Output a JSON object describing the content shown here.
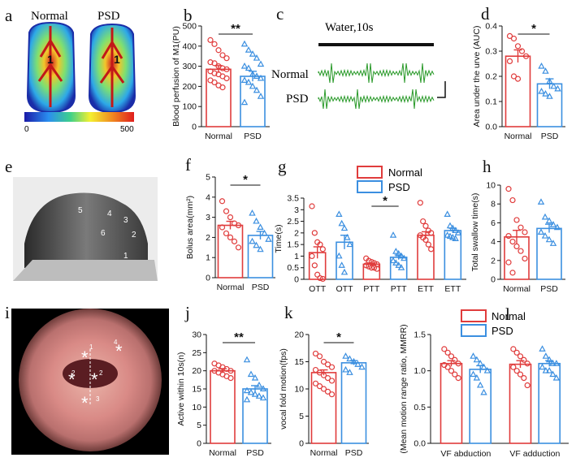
{
  "colors": {
    "normal": "#e03c3c",
    "psd": "#3b8fe0"
  },
  "legend": {
    "normal": "Normal",
    "psd": "PSD"
  },
  "panel_letters": [
    "a",
    "b",
    "c",
    "d",
    "e",
    "f",
    "g",
    "h",
    "i",
    "j",
    "k",
    "l"
  ],
  "panel_a": {
    "label_normal": "Normal",
    "label_psd": "PSD",
    "marker": "1",
    "scale_min": "0",
    "scale_max": "500"
  },
  "panel_c": {
    "stimulus": "Water,10s",
    "label_normal": "Normal",
    "label_psd": "PSD"
  },
  "panel_e": {
    "markers": [
      "5",
      "4",
      "3",
      "6",
      "2",
      "1"
    ]
  },
  "panel_i": {
    "markers": [
      "1",
      "2",
      "2",
      "3",
      "4"
    ]
  },
  "chart_data": [
    {
      "panel": "b",
      "type": "bar",
      "categories": [
        "Normal",
        "PSD"
      ],
      "ylabel": "Blood perfusion of M1(PU)",
      "ylim": [
        0,
        500
      ],
      "yticks": [
        0,
        100,
        200,
        300,
        400,
        500
      ],
      "means": [
        285,
        250
      ],
      "sem": [
        18,
        25
      ],
      "sig": "**",
      "points": [
        [
          430,
          410,
          380,
          355,
          340,
          320,
          315,
          300,
          290,
          285,
          275,
          265,
          260,
          250,
          240,
          230,
          220,
          205,
          195
        ],
        [
          410,
          380,
          360,
          340,
          310,
          300,
          290,
          260,
          250,
          240,
          230,
          220,
          200,
          180,
          150,
          120
        ]
      ]
    },
    {
      "panel": "d",
      "type": "bar",
      "categories": [
        "Normal",
        "PSD"
      ],
      "ylabel": "Area under the urve (AUC)",
      "ylim": [
        0,
        0.4
      ],
      "yticks": [
        0.0,
        0.1,
        0.2,
        0.3,
        0.4
      ],
      "means": [
        0.28,
        0.17
      ],
      "sem": [
        0.025,
        0.02
      ],
      "sig": "*",
      "points": [
        [
          0.36,
          0.35,
          0.32,
          0.3,
          0.28,
          0.26,
          0.2,
          0.19
        ],
        [
          0.24,
          0.22,
          0.18,
          0.16,
          0.15,
          0.14,
          0.13,
          0.12
        ]
      ]
    },
    {
      "panel": "f",
      "type": "bar",
      "categories": [
        "Normal",
        "PSD"
      ],
      "ylabel": "Bolus area(mm²)",
      "ylim": [
        0,
        5
      ],
      "yticks": [
        0,
        1,
        2,
        3,
        4,
        5
      ],
      "means": [
        2.6,
        2.1
      ],
      "sem": [
        0.2,
        0.2
      ],
      "sig": "*",
      "points": [
        [
          3.8,
          3.3,
          3.0,
          2.7,
          2.6,
          2.5,
          2.2,
          2.0,
          1.8,
          1.5
        ],
        [
          3.2,
          2.8,
          2.5,
          2.2,
          1.9,
          1.8,
          1.6,
          1.4
        ]
      ]
    },
    {
      "panel": "g",
      "type": "bar",
      "categories": [
        "OTT",
        "OTT",
        "PTT",
        "PTT",
        "ETT",
        "ETT"
      ],
      "groups": [
        "normal",
        "psd",
        "normal",
        "psd",
        "normal",
        "psd"
      ],
      "ylabel": "Time(s)",
      "ylim": [
        0,
        3.5
      ],
      "yticks": [
        0,
        0.5,
        1.0,
        1.5,
        2.0,
        2.5,
        3.0,
        3.5
      ],
      "means": [
        1.15,
        1.6,
        0.65,
        0.95,
        1.9,
        2.1
      ],
      "sem": [
        0.25,
        0.3,
        0.05,
        0.1,
        0.15,
        0.1
      ],
      "sig": "*",
      "sig_pair": [
        2,
        3
      ],
      "points": [
        [
          3.15,
          2.0,
          1.6,
          1.5,
          1.3,
          1.0,
          0.6,
          0.2,
          0.05,
          0.02
        ],
        [
          2.8,
          2.4,
          2.2,
          1.8,
          1.5,
          1.0,
          0.6,
          0.3
        ],
        [
          0.9,
          0.8,
          0.75,
          0.7,
          0.65,
          0.6,
          0.55,
          0.5,
          0.5,
          0.45
        ],
        [
          1.9,
          1.2,
          1.1,
          1.0,
          0.9,
          0.8,
          0.7,
          0.6,
          0.5
        ],
        [
          3.3,
          2.5,
          2.3,
          2.1,
          2.0,
          1.9,
          1.8,
          1.7,
          1.5,
          1.3
        ],
        [
          2.8,
          2.3,
          2.2,
          2.1,
          2.0,
          1.9,
          1.85,
          1.8,
          1.75
        ]
      ]
    },
    {
      "panel": "h",
      "type": "bar",
      "categories": [
        "Normal",
        "PSD"
      ],
      "ylabel": "Total swallow time(s)",
      "ylim": [
        0,
        10
      ],
      "yticks": [
        0,
        2,
        4,
        6,
        8,
        10
      ],
      "means": [
        4.5,
        5.4
      ],
      "sem": [
        0.7,
        0.45
      ],
      "sig": "",
      "points": [
        [
          9.6,
          8.4,
          6.3,
          5.5,
          5.0,
          4.6,
          4.0,
          3.5,
          3.0,
          2.2,
          1.8,
          0.7
        ],
        [
          8.2,
          6.6,
          6.2,
          5.8,
          5.5,
          5.0,
          4.6,
          4.2,
          3.8
        ]
      ]
    },
    {
      "panel": "j",
      "type": "bar",
      "categories": [
        "Normal",
        "PSD"
      ],
      "ylabel": "Active within 10s(n)",
      "ylim": [
        0,
        30
      ],
      "yticks": [
        0,
        5,
        10,
        15,
        20,
        25,
        30
      ],
      "means": [
        20,
        15
      ],
      "sem": [
        0.6,
        0.9
      ],
      "sig": "**",
      "points": [
        [
          22,
          21.5,
          21,
          20.5,
          20,
          20,
          19.5,
          19,
          18.5,
          18
        ],
        [
          23,
          19,
          18,
          16,
          15,
          14.5,
          14,
          13.5,
          13,
          12.5,
          12
        ]
      ]
    },
    {
      "panel": "k",
      "type": "bar",
      "categories": [
        "Normal",
        "PSD"
      ],
      "ylabel": "vocal fold motion(fps)",
      "ylim": [
        0,
        20
      ],
      "yticks": [
        0,
        5,
        10,
        15,
        20
      ],
      "means": [
        13,
        14.8
      ],
      "sem": [
        0.5,
        0.4
      ],
      "sig": "*",
      "points": [
        [
          16.5,
          16,
          15,
          14.5,
          14,
          13.5,
          13,
          12.5,
          12,
          11.5,
          11,
          10.5,
          10,
          9.5,
          9
        ],
        [
          16,
          15.5,
          15,
          14.5,
          14,
          13.5,
          13
        ]
      ]
    },
    {
      "panel": "l",
      "type": "bar",
      "categories": [
        "VF abduction",
        "VF adduction"
      ],
      "ylabel": "(Mean motion range ratio, MMRR)",
      "ylim": [
        0,
        1.5
      ],
      "yticks": [
        0.0,
        0.5,
        1.0,
        1.5
      ],
      "means": [
        [
          1.1,
          1.02
        ],
        [
          1.09,
          1.1
        ]
      ],
      "sem": [
        [
          0.04,
          0.05
        ],
        [
          0.05,
          0.04
        ]
      ],
      "sig": "",
      "points": [
        [
          [
            1.3,
            1.25,
            1.2,
            1.15,
            1.1,
            1.08,
            1.05,
            1.0,
            0.95,
            0.9
          ],
          [
            1.2,
            1.15,
            1.1,
            1.05,
            1.0,
            0.95,
            0.9,
            0.8,
            0.7
          ]
        ],
        [
          [
            1.3,
            1.25,
            1.2,
            1.15,
            1.1,
            1.05,
            1.0,
            0.95,
            0.9,
            0.8
          ],
          [
            1.3,
            1.2,
            1.15,
            1.1,
            1.1,
            1.05,
            1.0,
            1.0,
            0.95,
            0.9
          ]
        ]
      ]
    }
  ]
}
